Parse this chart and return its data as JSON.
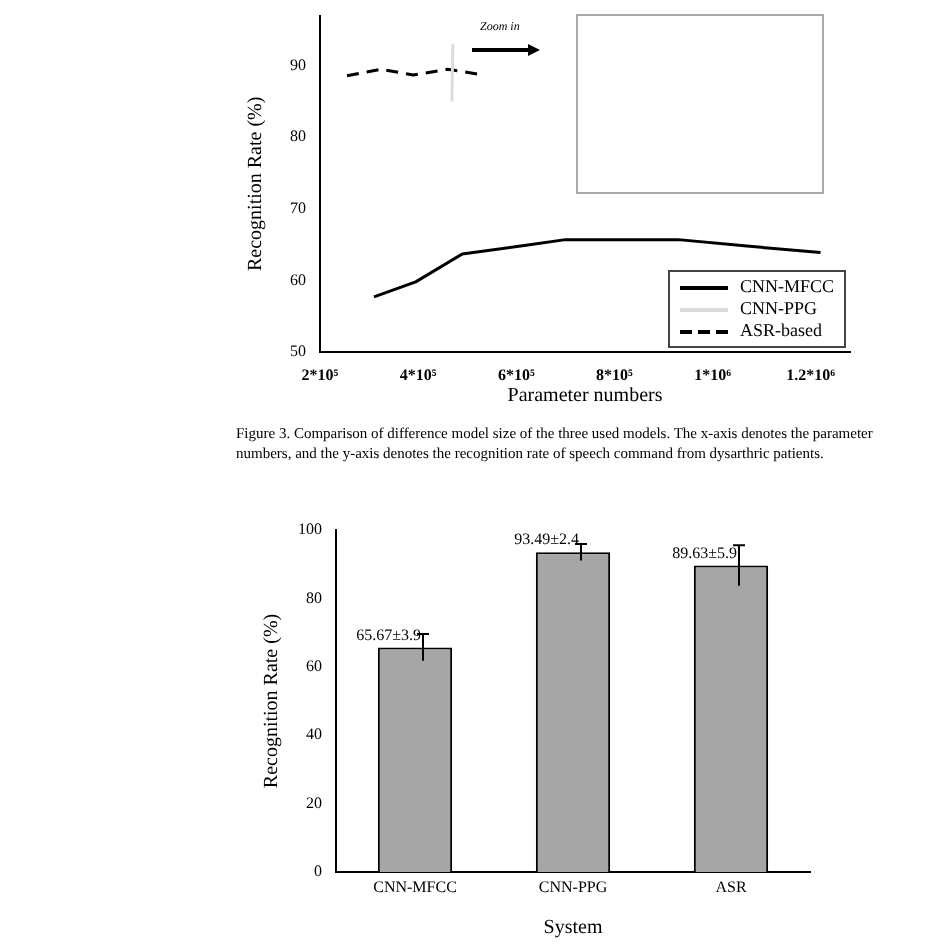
{
  "chart_data": [
    {
      "type": "line",
      "xlabel": "Parameter numbers",
      "ylabel": "Recognition Rate (%)",
      "xlim": [
        200000,
        1280000
      ],
      "xticks": [
        {
          "value": 200000,
          "label": "2*10⁵"
        },
        {
          "value": 400000,
          "label": "4*10⁵"
        },
        {
          "value": 600000,
          "label": "6*10⁵"
        },
        {
          "value": 800000,
          "label": "8*10⁵"
        },
        {
          "value": 1000000,
          "label": "1*10⁶"
        },
        {
          "value": 1200000,
          "label": "1.2*10⁶"
        }
      ],
      "ylim": [
        50,
        97
      ],
      "yticks": [
        50,
        60,
        70,
        80,
        90
      ],
      "legend": "bottom right",
      "marker": "none",
      "series": [
        {
          "name": "CNN-MFCC",
          "color": "#000000",
          "line_style": "solid",
          "x": [
            310000,
            395000,
            490000,
            620000,
            700000,
            930000,
            1070000,
            1220000
          ],
          "values": [
            57.7,
            59.8,
            63.7,
            64.9,
            65.7,
            65.7,
            64.8,
            63.9
          ]
        },
        {
          "name": "CNN-PPG",
          "color": "#dcdcdc",
          "line_style": "solid",
          "x": [
            468800,
            470600
          ],
          "values": [
            85,
            93
          ]
        },
        {
          "name": "ASR-based",
          "color": "#000000",
          "line_style": "dashed",
          "x": [
            255000,
            325000,
            390000,
            460000,
            525000
          ],
          "values": [
            88.6,
            89.5,
            88.7,
            89.5,
            88.8
          ]
        }
      ],
      "annotations": [
        "Zoom in",
        "Figure 3. Comparison of difference model size of the three used models. The x-axis denotes the parameter numbers, and the y-axis denotes the recognition rate of speech command from dysarthric patients."
      ]
    },
    {
      "type": "bar",
      "xlabel": "System",
      "ylabel": "Recognition Rate (%)",
      "categories": [
        "CNN-MFCC",
        "CNN-PPG",
        "ASR"
      ],
      "values": [
        65.67,
        93.49,
        89.63
      ],
      "errors": [
        3.9,
        2.4,
        5.9
      ],
      "value_labels": [
        "65.67±3.9",
        "93.49±2.4",
        "89.63±5.9"
      ],
      "color": "#a6a6a6",
      "ylim": [
        0,
        100
      ],
      "yticks": [
        0,
        20,
        40,
        60,
        80,
        100
      ]
    }
  ]
}
